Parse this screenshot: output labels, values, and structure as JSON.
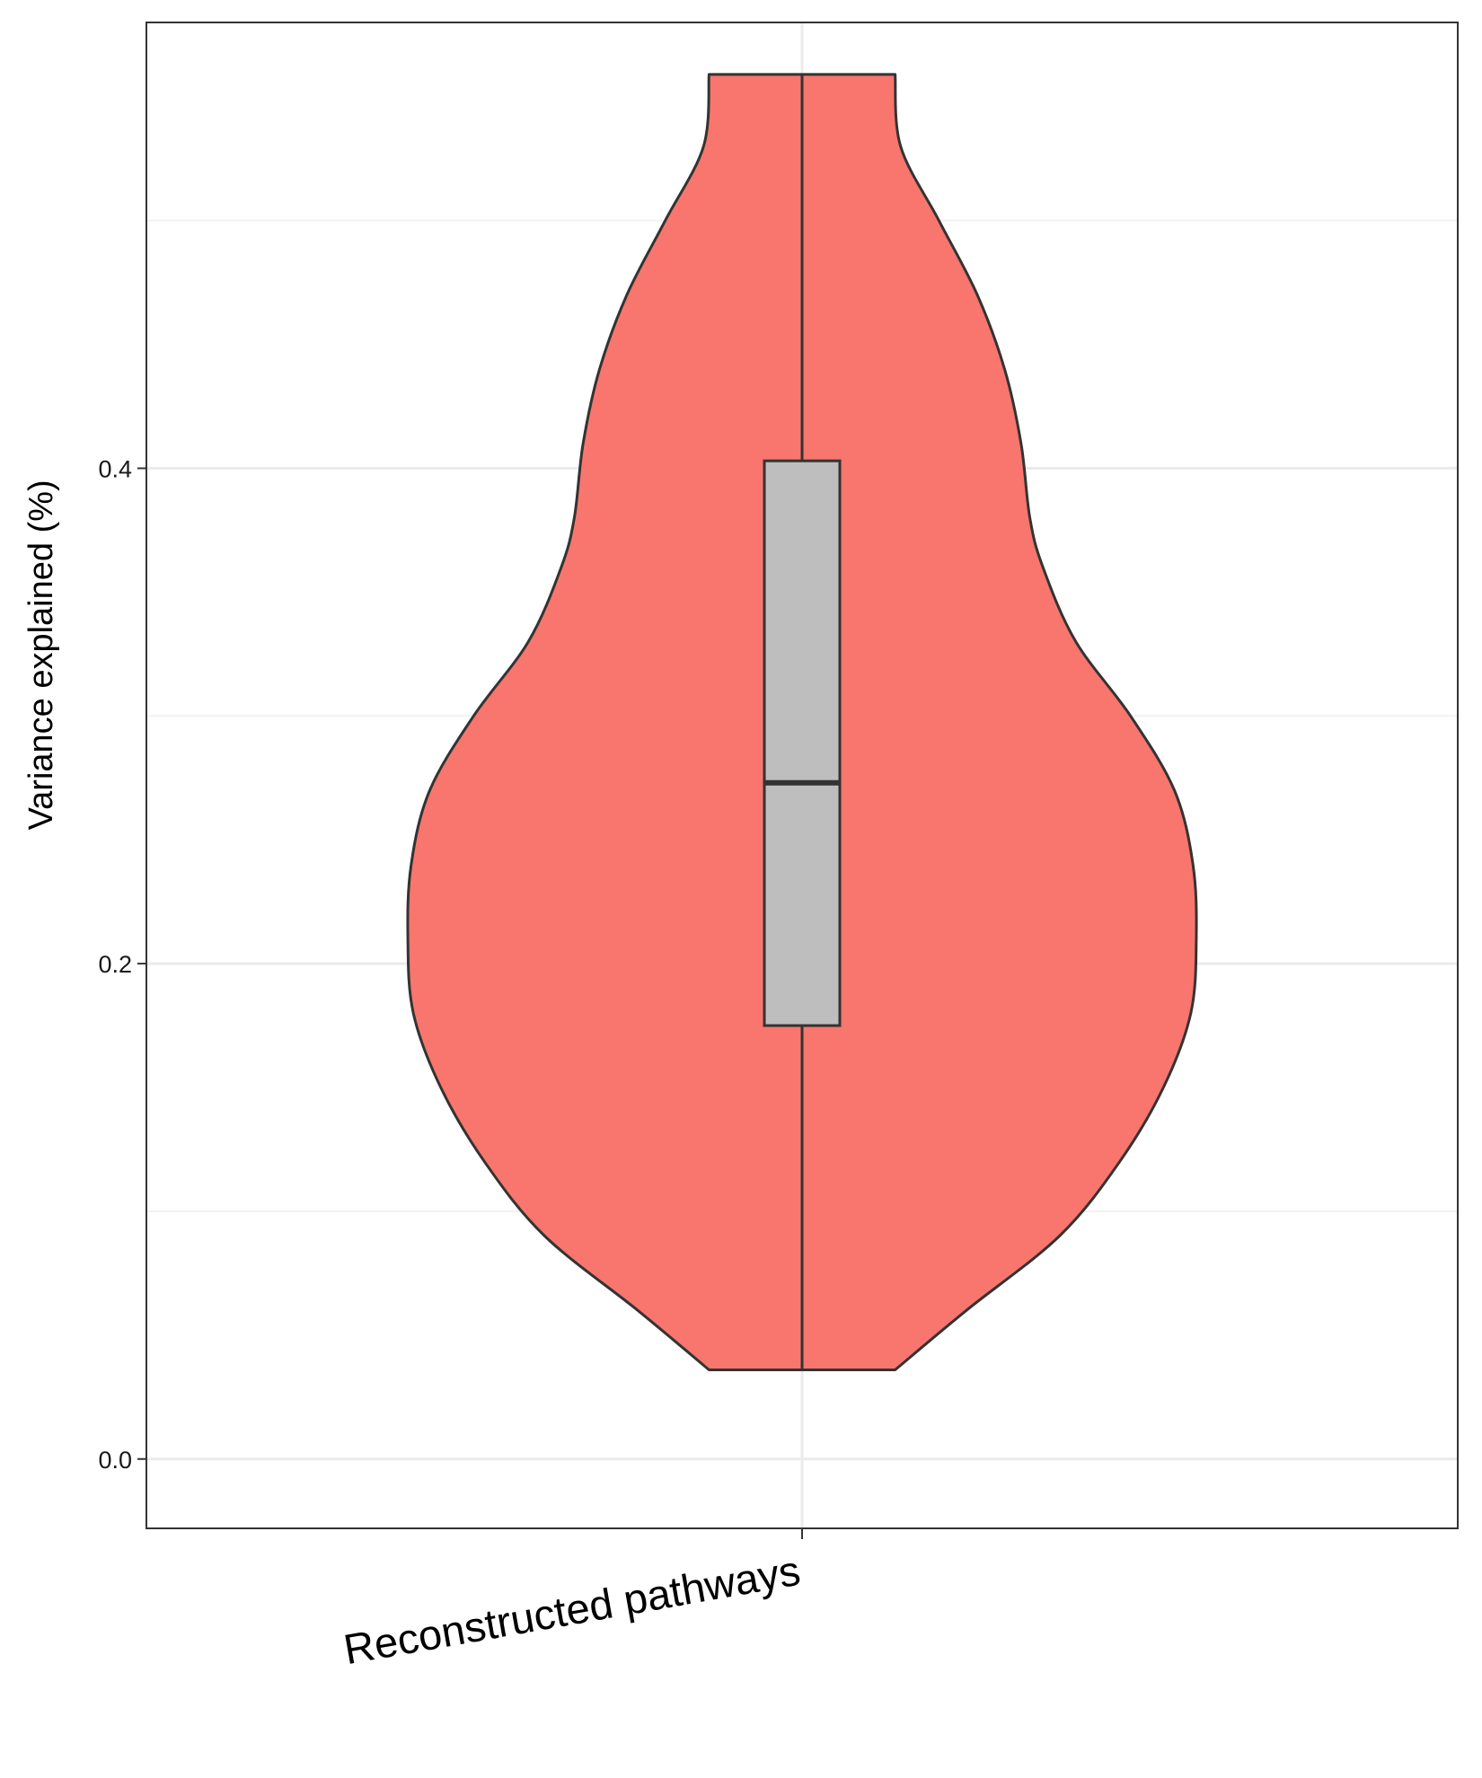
{
  "chart_data": {
    "type": "violin",
    "title": "",
    "xlabel": "",
    "ylabel": "Variance explained (%)",
    "ylim": [
      -0.028,
      0.58
    ],
    "yticks": [
      0.0,
      0.2,
      0.4
    ],
    "ytick_labels": [
      "0.0",
      "0.2",
      "0.4"
    ],
    "grid": true,
    "legend": "none",
    "categories": [
      "Reconstructed pathways"
    ],
    "series": [
      {
        "category": "Reconstructed pathways",
        "fill_color": "#F8766D",
        "outline_color": "#333333",
        "min": 0.036,
        "max": 0.559,
        "density_profile": [
          {
            "y": 0.036,
            "half_width": 0.085
          },
          {
            "y": 0.06,
            "half_width": 0.15
          },
          {
            "y": 0.09,
            "half_width": 0.235
          },
          {
            "y": 0.12,
            "half_width": 0.29
          },
          {
            "y": 0.15,
            "half_width": 0.33
          },
          {
            "y": 0.18,
            "half_width": 0.355
          },
          {
            "y": 0.21,
            "half_width": 0.36
          },
          {
            "y": 0.24,
            "half_width": 0.357
          },
          {
            "y": 0.27,
            "half_width": 0.34
          },
          {
            "y": 0.3,
            "half_width": 0.3
          },
          {
            "y": 0.33,
            "half_width": 0.25
          },
          {
            "y": 0.36,
            "half_width": 0.22
          },
          {
            "y": 0.38,
            "half_width": 0.208
          },
          {
            "y": 0.41,
            "half_width": 0.2
          },
          {
            "y": 0.44,
            "half_width": 0.185
          },
          {
            "y": 0.47,
            "half_width": 0.16
          },
          {
            "y": 0.5,
            "half_width": 0.125
          },
          {
            "y": 0.53,
            "half_width": 0.09
          },
          {
            "y": 0.559,
            "half_width": 0.085
          }
        ],
        "boxplot": {
          "whisker_low": 0.036,
          "q1": 0.175,
          "median": 0.273,
          "q3": 0.403,
          "whisker_high": 0.559,
          "fill_color": "#BEBEBE"
        }
      }
    ],
    "colors": {
      "panel_border": "#333333",
      "grid_major": "#EBEBEB",
      "grid_minor": "#F2F2F2"
    }
  }
}
